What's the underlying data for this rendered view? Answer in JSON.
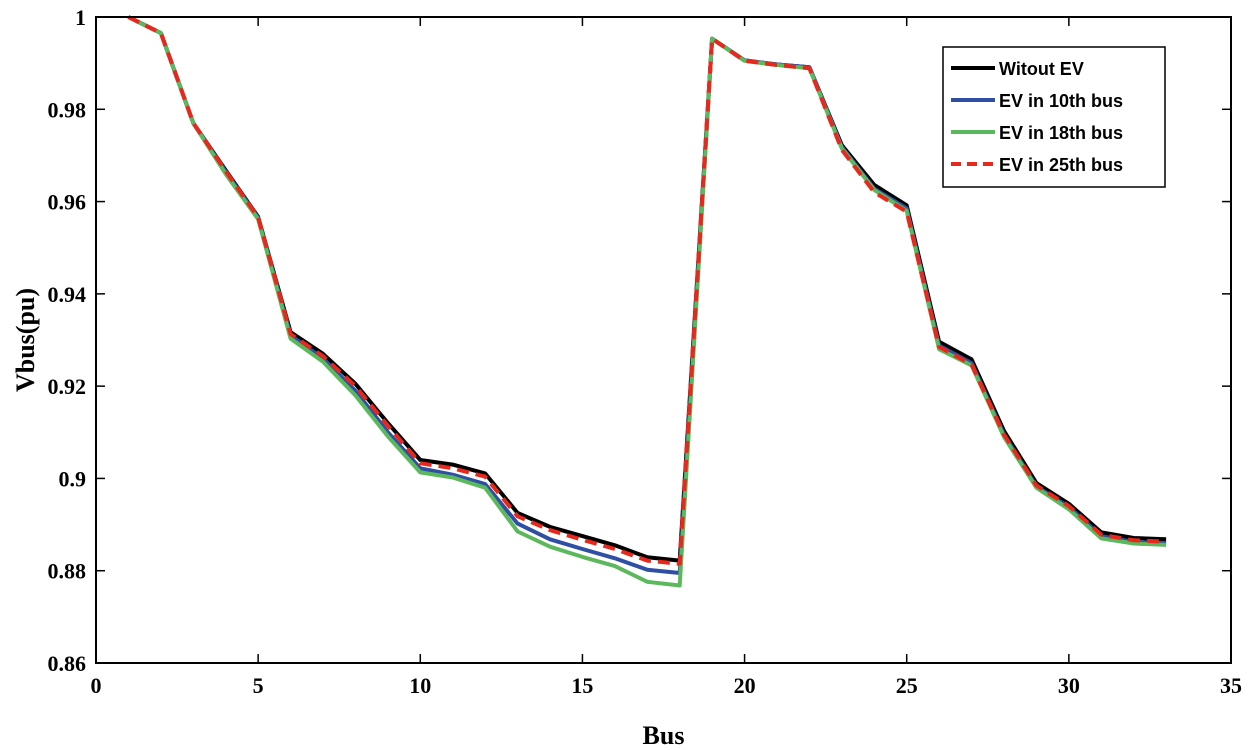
{
  "chart_data": {
    "type": "line",
    "xlabel": "Bus",
    "ylabel": "Vbus(pu)",
    "xlim": [
      0,
      35
    ],
    "ylim": [
      0.86,
      1.0
    ],
    "xticks": [
      0,
      5,
      10,
      15,
      20,
      25,
      30,
      35
    ],
    "yticks": [
      0.86,
      0.88,
      0.9,
      0.92,
      0.94,
      0.96,
      0.98,
      1.0
    ],
    "ytick_labels": [
      "0.86",
      "0.88",
      "0.9",
      "0.92",
      "0.94",
      "0.96",
      "0.98",
      "1"
    ],
    "grid": false,
    "legend_position": "top-right",
    "x": [
      1,
      2,
      3,
      4,
      5,
      6,
      7,
      8,
      9,
      10,
      11,
      12,
      13,
      14,
      15,
      16,
      17,
      18,
      19,
      20,
      21,
      22,
      23,
      24,
      25,
      26,
      27,
      28,
      29,
      30,
      31,
      32,
      33
    ],
    "series": [
      {
        "name": "Witout EV",
        "color": "#000000",
        "dash": "solid",
        "values": [
          1.0,
          0.9965,
          0.977,
          0.9668,
          0.9567,
          0.9317,
          0.927,
          0.9205,
          0.912,
          0.904,
          0.903,
          0.9011,
          0.8925,
          0.8895,
          0.8875,
          0.8855,
          0.8829,
          0.8822,
          0.9953,
          0.9906,
          0.9897,
          0.9891,
          0.9722,
          0.9636,
          0.9592,
          0.9296,
          0.9258,
          0.9103,
          0.899,
          0.8945,
          0.8883,
          0.8871,
          0.8868
        ]
      },
      {
        "name": "EV in 10th bus",
        "color": "#2e4fa3",
        "dash": "solid",
        "values": [
          1.0,
          0.9965,
          0.977,
          0.9665,
          0.9565,
          0.931,
          0.926,
          0.919,
          0.91,
          0.9022,
          0.9008,
          0.8988,
          0.8902,
          0.8868,
          0.8847,
          0.8827,
          0.8802,
          0.8795,
          0.9953,
          0.9906,
          0.9897,
          0.9891,
          0.9718,
          0.9628,
          0.9585,
          0.9288,
          0.925,
          0.9095,
          0.8983,
          0.8938,
          0.8875,
          0.8862,
          0.886
        ]
      },
      {
        "name": "EV in 18th bus",
        "color": "#5cb85c",
        "dash": "solid",
        "values": [
          1.0,
          0.9965,
          0.977,
          0.966,
          0.9562,
          0.9303,
          0.9253,
          0.918,
          0.9091,
          0.9013,
          0.9002,
          0.898,
          0.8885,
          0.8852,
          0.883,
          0.881,
          0.8776,
          0.8768,
          0.9953,
          0.9905,
          0.9896,
          0.9889,
          0.9715,
          0.9625,
          0.958,
          0.928,
          0.9245,
          0.909,
          0.898,
          0.8933,
          0.887,
          0.8859,
          0.8856
        ]
      },
      {
        "name": "EV in 25th bus",
        "color": "#e8281c",
        "dash": "dashed",
        "values": [
          1.0,
          0.9965,
          0.977,
          0.9666,
          0.9566,
          0.9313,
          0.9265,
          0.92,
          0.9114,
          0.9033,
          0.9022,
          0.9004,
          0.8918,
          0.8888,
          0.8867,
          0.8847,
          0.8822,
          0.8815,
          0.9953,
          0.9905,
          0.9896,
          0.9889,
          0.9712,
          0.962,
          0.9578,
          0.9285,
          0.9247,
          0.9095,
          0.8985,
          0.894,
          0.8878,
          0.8866,
          0.8863
        ]
      }
    ]
  }
}
